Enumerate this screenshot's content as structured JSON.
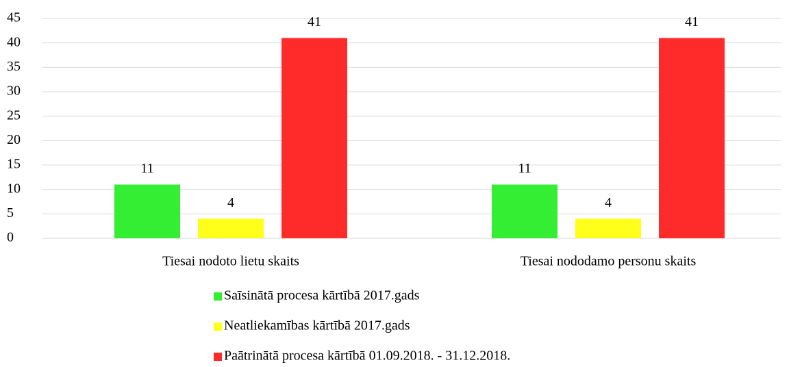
{
  "chart_data": {
    "type": "bar",
    "categories": [
      "Tiesai nodoto lietu skaits",
      "Tiesai nododamo personu skaits"
    ],
    "series": [
      {
        "name": "Saīsinātā procesa kārtībā 2017.gads",
        "color": "#33ee33",
        "values": [
          11,
          11
        ]
      },
      {
        "name": "Neatliekamības kārtībā 2017.gads",
        "color": "#ffff1a",
        "values": [
          4,
          4
        ]
      },
      {
        "name": "Paātrinātā procesa kārtībā 01.09.2018. - 31.12.2018.",
        "color": "#ff2a2a",
        "values": [
          41,
          41
        ]
      }
    ],
    "ylim": [
      0,
      45
    ],
    "yticks": [
      0,
      5,
      10,
      15,
      20,
      25,
      30,
      35,
      40,
      45
    ],
    "grid": true,
    "legend": "bottom"
  }
}
